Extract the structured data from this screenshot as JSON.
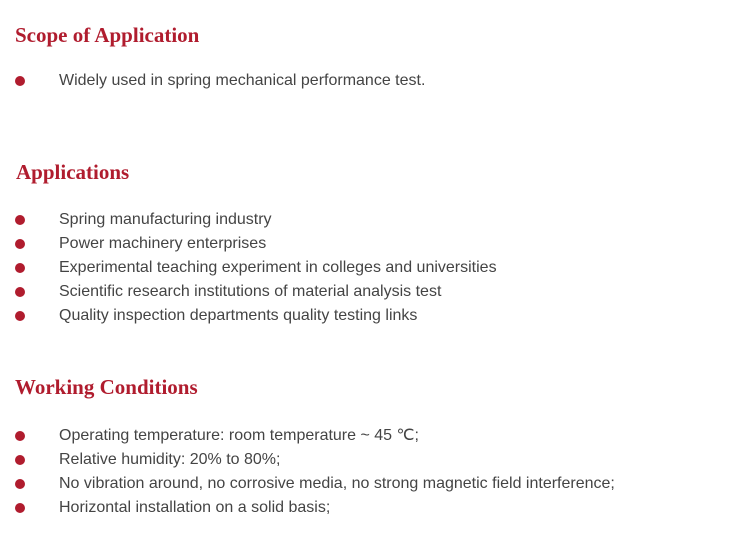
{
  "accent_color": "#b01c2e",
  "bullet_icon": "filled-circle",
  "sections": [
    {
      "title": "Scope of Application",
      "items": [
        "Widely used in spring mechanical performance test."
      ]
    },
    {
      "title": "Applications",
      "items": [
        "Spring manufacturing industry",
        "Power machinery enterprises",
        "Experimental teaching experiment in colleges and universities",
        "Scientific research institutions of material analysis test",
        "Quality inspection departments quality testing links"
      ]
    },
    {
      "title": "Working Conditions",
      "items": [
        "Operating temperature: room temperature ~ 45 ℃;",
        "Relative humidity: 20% to 80%;",
        "No vibration around, no corrosive media, no strong magnetic field interference;",
        "Horizontal installation on a solid basis;"
      ]
    }
  ]
}
